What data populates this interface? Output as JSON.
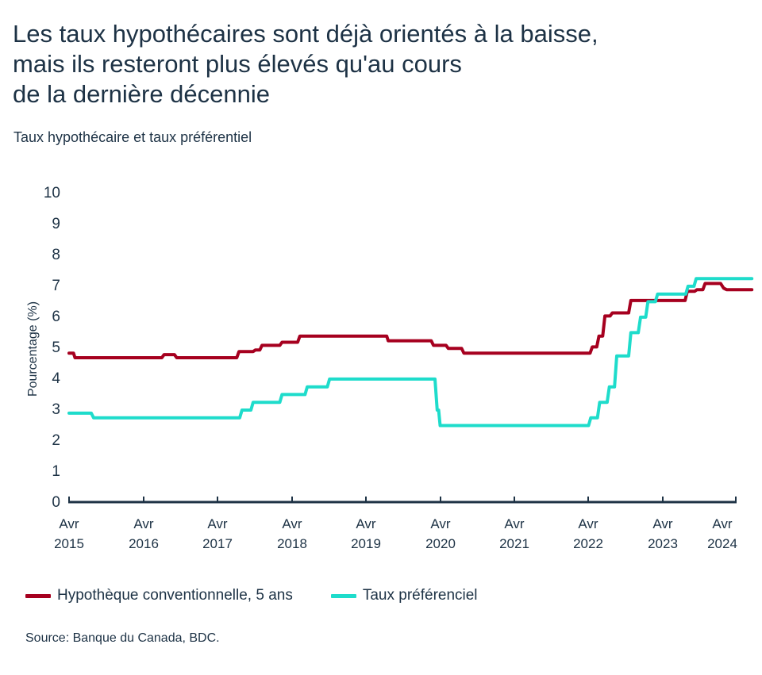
{
  "header": {
    "title_lines": [
      "Les taux hypothécaires sont déjà orientés à la baisse,",
      "mais ils resteront plus élevés qu'au cours",
      "de la dernière décennie"
    ],
    "subtitle": "Taux hypothécaire et taux préférentiel"
  },
  "legend": {
    "items": [
      {
        "label": "Hypothèque conventionnelle, 5 ans",
        "color": "#a6001f"
      },
      {
        "label": "Taux préférenciel",
        "color": "#1edccb"
      }
    ]
  },
  "source": "Source: Banque du Canada, BDC.",
  "chart_data": {
    "type": "line",
    "title": "Les taux hypothécaires sont déjà orientés à la baisse, mais ils resteront plus élevés qu'au cours de la dernière décennie",
    "subtitle": "Taux hypothécaire et taux préférentiel",
    "xlabel": "",
    "ylabel": "Pourcentage (%)",
    "ylim": [
      0,
      10
    ],
    "yticks": [
      "0",
      "1",
      "2",
      "3",
      "4",
      "5",
      "6",
      "7",
      "8",
      "9",
      "10"
    ],
    "xticks": [
      {
        "line1": "Avr",
        "line2": "2015"
      },
      {
        "line1": "Avr",
        "line2": "2016"
      },
      {
        "line1": "Avr",
        "line2": "2017"
      },
      {
        "line1": "Avr",
        "line2": "2018"
      },
      {
        "line1": "Avr",
        "line2": "2019"
      },
      {
        "line1": "Avr",
        "line2": "2020"
      },
      {
        "line1": "Avr",
        "line2": "2021"
      },
      {
        "line1": "Avr",
        "line2": "2022"
      },
      {
        "line1": "Avr",
        "line2": "2023"
      },
      {
        "line1": "Avr",
        "line2": "2024"
      }
    ],
    "x_unit": "years since Apr 2015",
    "grid": false,
    "legend_position": "bottom",
    "series": [
      {
        "name": "Hypothèque conventionnelle, 5 ans",
        "color": "#a6001f",
        "step": true,
        "points": [
          [
            0.0,
            4.79
          ],
          [
            0.06,
            4.79
          ],
          [
            0.08,
            4.64
          ],
          [
            1.25,
            4.64
          ],
          [
            1.28,
            4.74
          ],
          [
            1.42,
            4.74
          ],
          [
            1.45,
            4.64
          ],
          [
            2.26,
            4.64
          ],
          [
            2.29,
            4.84
          ],
          [
            2.48,
            4.84
          ],
          [
            2.51,
            4.89
          ],
          [
            2.57,
            4.89
          ],
          [
            2.6,
            5.04
          ],
          [
            2.84,
            5.04
          ],
          [
            2.87,
            5.14
          ],
          [
            3.08,
            5.14
          ],
          [
            3.11,
            5.34
          ],
          [
            4.28,
            5.34
          ],
          [
            4.3,
            5.19
          ],
          [
            4.88,
            5.19
          ],
          [
            4.91,
            5.04
          ],
          [
            5.08,
            5.04
          ],
          [
            5.11,
            4.94
          ],
          [
            5.29,
            4.94
          ],
          [
            5.32,
            4.79
          ],
          [
            7.02,
            4.79
          ],
          [
            7.05,
            4.99
          ],
          [
            7.11,
            4.99
          ],
          [
            7.14,
            5.34
          ],
          [
            7.19,
            5.34
          ],
          [
            7.22,
            5.99
          ],
          [
            7.29,
            5.99
          ],
          [
            7.32,
            6.09
          ],
          [
            7.54,
            6.09
          ],
          [
            7.57,
            6.49
          ],
          [
            8.3,
            6.49
          ],
          [
            8.33,
            6.79
          ],
          [
            8.43,
            6.79
          ],
          [
            8.46,
            6.84
          ],
          [
            8.54,
            6.84
          ],
          [
            8.57,
            7.04
          ],
          [
            8.78,
            7.04
          ],
          [
            8.82,
            6.89
          ],
          [
            8.86,
            6.84
          ],
          [
            8.89,
            6.84
          ],
          [
            9.2,
            6.84
          ]
        ]
      },
      {
        "name": "Taux préférenciel",
        "color": "#1edccb",
        "step": true,
        "points": [
          [
            0.0,
            2.85
          ],
          [
            0.3,
            2.85
          ],
          [
            0.33,
            2.7
          ],
          [
            2.3,
            2.7
          ],
          [
            2.33,
            2.95
          ],
          [
            2.45,
            2.95
          ],
          [
            2.48,
            3.2
          ],
          [
            2.84,
            3.2
          ],
          [
            2.87,
            3.45
          ],
          [
            3.18,
            3.45
          ],
          [
            3.21,
            3.7
          ],
          [
            3.48,
            3.7
          ],
          [
            3.51,
            3.95
          ],
          [
            4.93,
            3.95
          ],
          [
            4.96,
            2.95
          ],
          [
            4.98,
            2.95
          ],
          [
            5.0,
            2.45
          ],
          [
            7.0,
            2.45
          ],
          [
            7.03,
            2.7
          ],
          [
            7.12,
            2.7
          ],
          [
            7.15,
            3.2
          ],
          [
            7.25,
            3.2
          ],
          [
            7.28,
            3.7
          ],
          [
            7.35,
            3.7
          ],
          [
            7.38,
            4.7
          ],
          [
            7.54,
            4.7
          ],
          [
            7.57,
            5.45
          ],
          [
            7.67,
            5.45
          ],
          [
            7.7,
            5.95
          ],
          [
            7.77,
            5.95
          ],
          [
            7.8,
            6.45
          ],
          [
            7.9,
            6.45
          ],
          [
            7.93,
            6.7
          ],
          [
            8.31,
            6.7
          ],
          [
            8.34,
            6.95
          ],
          [
            8.42,
            6.95
          ],
          [
            8.45,
            7.2
          ],
          [
            9.2,
            7.2
          ]
        ]
      }
    ]
  }
}
